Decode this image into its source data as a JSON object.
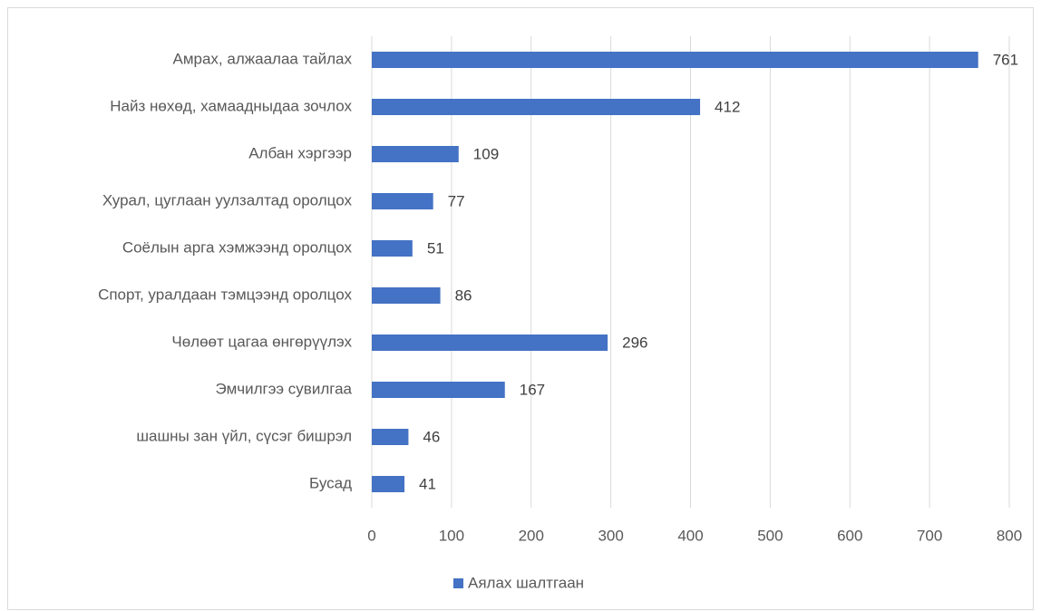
{
  "chart_data": {
    "type": "bar",
    "orientation": "horizontal",
    "categories": [
      "Амрах, алжаалаа тайлах",
      "Найз нөхөд, хамаадныдаа зочлох",
      "Албан хэргээр",
      "Хурал, цуглаан уулзалтад оролцох",
      "Соёлын арга хэмжээнд оролцох",
      "Спорт, уралдаан тэмцээнд оролцох",
      "Чөлөөт цагаа өнгөрүүлэх",
      "Эмчилгээ сувилгаа",
      "шашны зан үйл, сүсэг бишрэл",
      "Бусад"
    ],
    "series": [
      {
        "name": "Аялах шалтгаан",
        "color": "#4472c4",
        "values": [
          761,
          412,
          109,
          77,
          51,
          86,
          296,
          167,
          46,
          41
        ]
      }
    ],
    "xlim": [
      0,
      800
    ],
    "xticks": [
      0,
      100,
      200,
      300,
      400,
      500,
      600,
      700,
      800
    ],
    "grid": true,
    "legend": "bottom"
  }
}
